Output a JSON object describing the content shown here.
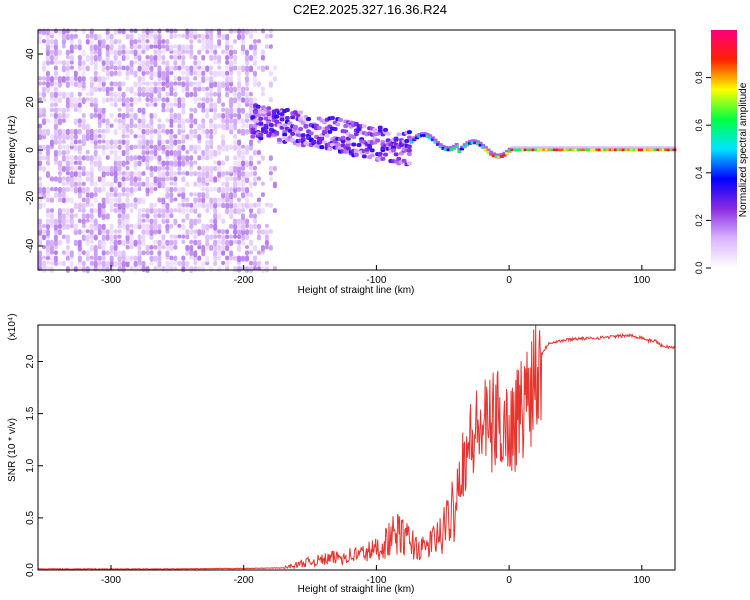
{
  "title": "C2E2.2025.327.16.36.R24",
  "chart_data": [
    {
      "type": "heatmap",
      "xlabel": "Height of straight line (km)",
      "ylabel": "Frequency (Hz)",
      "xlim": [
        -355,
        125
      ],
      "ylim": [
        -50,
        50
      ],
      "xticks": [
        -300,
        -200,
        -100,
        0,
        100
      ],
      "xtick_labels": [
        "-300",
        "-200",
        "-100",
        "0",
        "100"
      ],
      "yticks": [
        -40,
        -20,
        0,
        20,
        40
      ],
      "ytick_labels": [
        "-40",
        "-20",
        "0",
        "20",
        "40"
      ],
      "colorbar": {
        "label": "Normalized spectral amplitude",
        "range": [
          0,
          1
        ],
        "ticks": [
          0.0,
          0.2,
          0.4,
          0.6,
          0.8
        ],
        "tick_labels": [
          "0.0",
          "0.2",
          "0.4",
          "0.6",
          "0.8"
        ],
        "colors": [
          "#ffffff",
          "#d9b3ff",
          "#8a2be2",
          "#0000ff",
          "#00e5ff",
          "#00ff40",
          "#ffff00",
          "#ff2000",
          "#ff0080"
        ]
      },
      "regions": [
        {
          "name": "noise",
          "x": [
            -355,
            -175
          ],
          "freq": [
            -50,
            50
          ],
          "amplitude": [
            0.05,
            0.2
          ]
        },
        {
          "name": "signal-band",
          "x": [
            -195,
            -75
          ],
          "center_freq": [
            12,
            0
          ],
          "amplitude": [
            0.1,
            0.35
          ]
        },
        {
          "name": "trace",
          "x": [
            -75,
            125
          ],
          "freq": 0,
          "amplitude": [
            0.3,
            0.95
          ]
        }
      ]
    },
    {
      "type": "line",
      "xlabel": "Height of straight line (km)",
      "ylabel": "SNR (10 * v/v)",
      "yscale_label": "(x10⁴)",
      "xlim": [
        -355,
        125
      ],
      "ylim": [
        0,
        2.35
      ],
      "xticks": [
        -300,
        -200,
        -100,
        0,
        100
      ],
      "xtick_labels": [
        "-300",
        "-200",
        "-100",
        "0",
        "100"
      ],
      "yticks": [
        0.0,
        0.5,
        1.0,
        1.5,
        2.0
      ],
      "ytick_labels": [
        "0.0",
        "0.5",
        "1.0",
        "1.5",
        "2.0"
      ],
      "series": [
        {
          "name": "SNR",
          "color": "#e8332e",
          "x": [
            -355,
            -300,
            -250,
            -200,
            -170,
            -160,
            -150,
            -140,
            -130,
            -120,
            -110,
            -100,
            -95,
            -90,
            -85,
            -80,
            -75,
            -70,
            -65,
            -60,
            -55,
            -50,
            -45,
            -40,
            -35,
            -30,
            -25,
            -20,
            -15,
            -10,
            -5,
            0,
            5,
            10,
            15,
            20,
            25,
            30,
            40,
            50,
            60,
            70,
            80,
            90,
            100,
            105,
            110,
            115,
            120,
            125
          ],
          "y": [
            0.01,
            0.01,
            0.01,
            0.015,
            0.02,
            0.05,
            0.08,
            0.1,
            0.12,
            0.14,
            0.16,
            0.2,
            0.24,
            0.3,
            0.35,
            0.32,
            0.28,
            0.22,
            0.2,
            0.25,
            0.3,
            0.35,
            0.5,
            0.75,
            1.05,
            1.2,
            1.3,
            1.4,
            1.35,
            1.45,
            1.42,
            1.35,
            1.45,
            1.55,
            1.75,
            1.95,
            2.08,
            2.18,
            2.2,
            2.22,
            2.22,
            2.23,
            2.24,
            2.25,
            2.23,
            2.2,
            2.2,
            2.15,
            2.14,
            2.13
          ]
        }
      ]
    }
  ]
}
